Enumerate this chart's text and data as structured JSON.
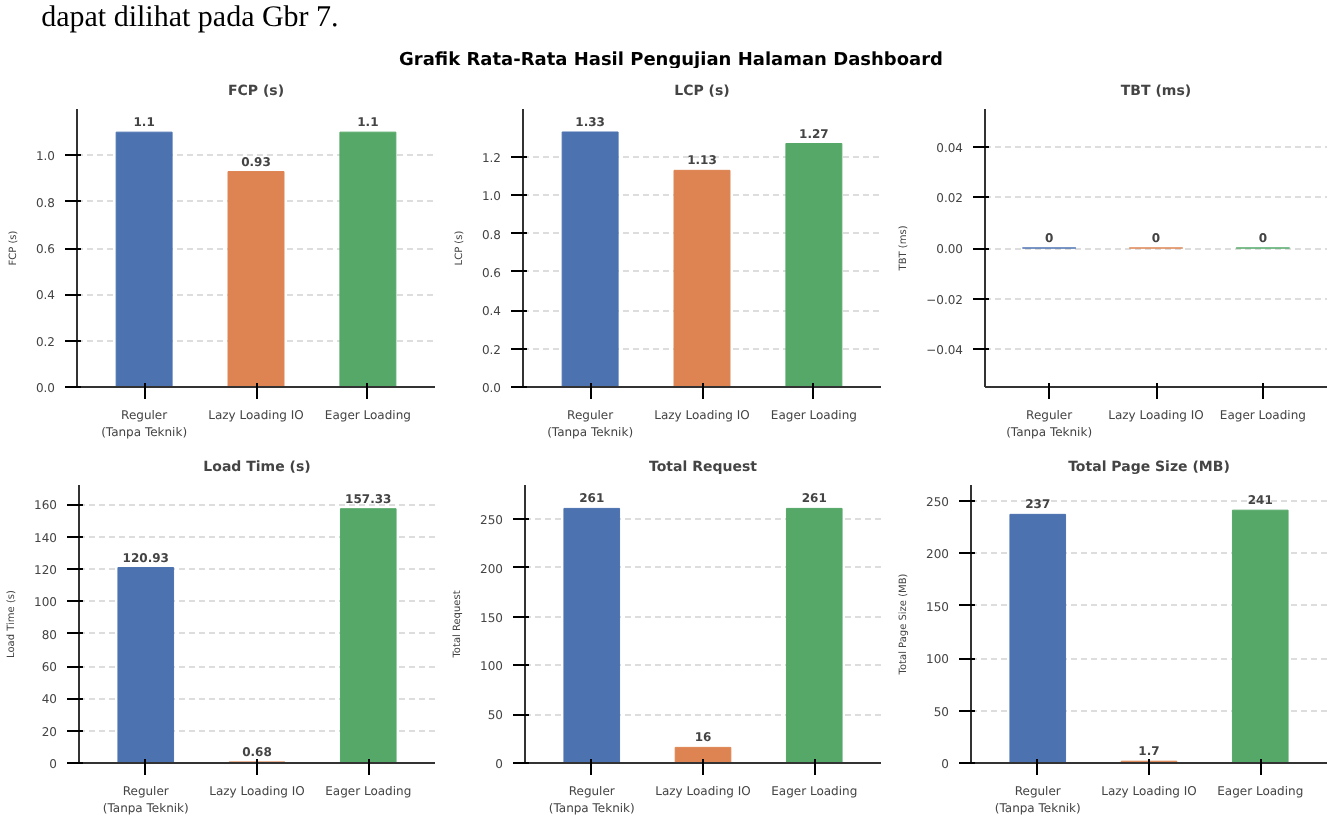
{
  "chart_data": [
    {
      "type": "other",
      "title": "Grafik Rata-Rata Hasil Pengujian Halaman Dashboard",
      "annotations": [
        "dapat dilihat pada Gbr 7."
      ]
    },
    {
      "type": "bar",
      "title": "FCP (s)",
      "ylabel": "FCP (s)",
      "categories": [
        "Reguler\n(Tanpa Teknik)",
        "Lazy Loading IO",
        "Eager Loading"
      ],
      "values": [
        1.1,
        0.93,
        1.1
      ],
      "colors": [
        "#4c72b0",
        "#dd8452",
        "#55a868"
      ],
      "data_labels": true,
      "grid": "y",
      "ylim": [
        0,
        1.2
      ],
      "yticks": [
        {
          "value": 0,
          "label": "0.0"
        },
        {
          "value": 0.2,
          "label": "0.2"
        },
        {
          "value": 0.4,
          "label": "0.4"
        },
        {
          "value": 0.6,
          "label": "0.6"
        },
        {
          "value": 0.8,
          "label": "0.8"
        },
        {
          "value": 1,
          "label": "1.0"
        }
      ]
    },
    {
      "type": "bar",
      "title": "LCP (s)",
      "ylabel": "LCP (s)",
      "categories": [
        "Reguler\n(Tanpa Teknik)",
        "Lazy Loading IO",
        "Eager Loading"
      ],
      "values": [
        1.33,
        1.13,
        1.27
      ],
      "colors": [
        "#4c72b0",
        "#dd8452",
        "#55a868"
      ],
      "data_labels": true,
      "grid": "y",
      "ylim": [
        0,
        1.45
      ],
      "yticks": [
        {
          "value": 0,
          "label": "0.0"
        },
        {
          "value": 0.2,
          "label": "0.2"
        },
        {
          "value": 0.4,
          "label": "0.4"
        },
        {
          "value": 0.6,
          "label": "0.6"
        },
        {
          "value": 0.8,
          "label": "0.8"
        },
        {
          "value": 1,
          "label": "1.0"
        },
        {
          "value": 1.2,
          "label": "1.2"
        }
      ]
    },
    {
      "type": "bar",
      "title": "TBT (ms)",
      "ylabel": "TBT (ms)",
      "categories": [
        "Reguler\n(Tanpa Teknik)",
        "Lazy Loading IO",
        "Eager Loading"
      ],
      "values": [
        0,
        0,
        0
      ],
      "colors": [
        "#4c72b0",
        "#dd8452",
        "#55a868"
      ],
      "data_labels": true,
      "grid": "y",
      "ylim": [
        -0.055,
        0.055
      ],
      "yticks": [
        {
          "value": -0.04,
          "label": "−0.04"
        },
        {
          "value": -0.02,
          "label": "−0.02"
        },
        {
          "value": 0,
          "label": "0.00"
        },
        {
          "value": 0.02,
          "label": "0.02"
        },
        {
          "value": 0.04,
          "label": "0.04"
        }
      ]
    },
    {
      "type": "bar",
      "title": "Load Time (s)",
      "ylabel": "Load Time (s)",
      "categories": [
        "Reguler\n(Tanpa Teknik)",
        "Lazy Loading IO",
        "Eager Loading"
      ],
      "values": [
        120.93,
        0.68,
        157.33
      ],
      "colors": [
        "#4c72b0",
        "#dd8452",
        "#55a868"
      ],
      "data_labels": true,
      "grid": "y",
      "ylim": [
        0,
        172
      ],
      "yticks": [
        0,
        20,
        40,
        60,
        80,
        100,
        120,
        140,
        160
      ]
    },
    {
      "type": "bar",
      "title": "Total Request",
      "ylabel": "Total Request",
      "categories": [
        "Reguler\n(Tanpa Teknik)",
        "Lazy Loading IO",
        "Eager Loading"
      ],
      "values": [
        261,
        16,
        261
      ],
      "colors": [
        "#4c72b0",
        "#dd8452",
        "#55a868"
      ],
      "data_labels": true,
      "grid": "y",
      "ylim": [
        0,
        285
      ],
      "yticks": [
        0,
        50,
        100,
        150,
        200,
        250
      ]
    },
    {
      "type": "bar",
      "title": "Total Page Size (MB)",
      "ylabel": "Total Page Size (MB)",
      "categories": [
        "Reguler\n(Tanpa Teknik)",
        "Lazy Loading IO",
        "Eager Loading"
      ],
      "values": [
        237,
        1.7,
        241
      ],
      "colors": [
        "#4c72b0",
        "#dd8452",
        "#55a868"
      ],
      "data_labels": true,
      "grid": "y",
      "ylim": [
        0,
        265
      ],
      "yticks": [
        0,
        50,
        100,
        150,
        200,
        250
      ]
    }
  ]
}
